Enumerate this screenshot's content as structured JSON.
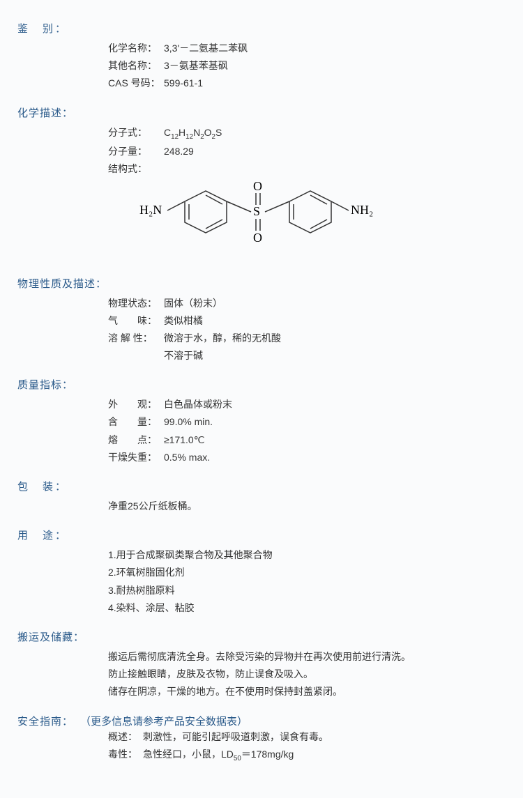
{
  "identification": {
    "header": "鉴　别：",
    "chem_name_label": "化学名称：",
    "chem_name_value": "3,3'－二氨基二苯砜",
    "other_name_label": "其他名称：",
    "other_name_value": "3－氨基苯基砜",
    "cas_label": "CAS 号码：",
    "cas_value": "599-61-1"
  },
  "chemdesc": {
    "header": "化学描述：",
    "formula_label": "分子式：",
    "formula_value_html": "C<sub>12</sub>H<sub>12</sub>N<sub>2</sub>O<sub>2</sub>S",
    "mw_label": "分子量：",
    "mw_value": "248.29",
    "struct_label": "结构式：",
    "structure": {
      "left_label": "H₂N",
      "right_label": "NH₂",
      "top_O": "O",
      "bottom_O": "O",
      "center": "S",
      "line_color": "#333333",
      "text_color": "#2a2a2a"
    }
  },
  "physical": {
    "header": "物理性质及描述：",
    "state_label": "物理状态：",
    "state_value": "固体（粉末）",
    "odor_label": "气　　味：",
    "odor_value": "类似柑橘",
    "sol_label": "溶 解 性：",
    "sol_value": "微溶于水，醇，稀的无机酸",
    "sol_value2": "不溶于碱"
  },
  "quality": {
    "header": "质量指标：",
    "appearance_label": "外　　观：",
    "appearance_value": "白色晶体或粉末",
    "content_label": "含　　量：",
    "content_value": "99.0% min.",
    "mp_label": "熔　　点：",
    "mp_value": "≥171.0℃",
    "lod_label": "干燥失重：",
    "lod_value": "0.5% max."
  },
  "packaging": {
    "header": "包　装：",
    "value": "净重25公斤纸板桶。"
  },
  "uses": {
    "header": "用　途：",
    "items": [
      "1.用于合成聚砜类聚合物及其他聚合物",
      "2.环氧树脂固化剂",
      "3.耐热树脂原料",
      "4.染料、涂层、粘胶"
    ]
  },
  "handling": {
    "header": "搬运及储藏：",
    "lines": [
      "搬运后需彻底清洗全身。去除受污染的异物并在再次使用前进行清洗。",
      "防止接触眼睛，皮肤及衣物，防止误食及吸入。",
      "储存在阴凉，干燥的地方。在不使用时保持封盖紧闭。"
    ]
  },
  "safety": {
    "header": "安全指南：",
    "note": "（更多信息请参考产品安全数据表）",
    "overview_label": "概述：",
    "overview_value": "刺激性，可能引起呼吸道刺激，误食有毒。",
    "tox_label": "毒性：",
    "tox_value_html": "急性经口，小鼠，LD<sub>50</sub>＝178mg/kg"
  },
  "colors": {
    "header_color": "#2a5a8a",
    "text_color": "#333333",
    "background": "#fafbfc"
  }
}
